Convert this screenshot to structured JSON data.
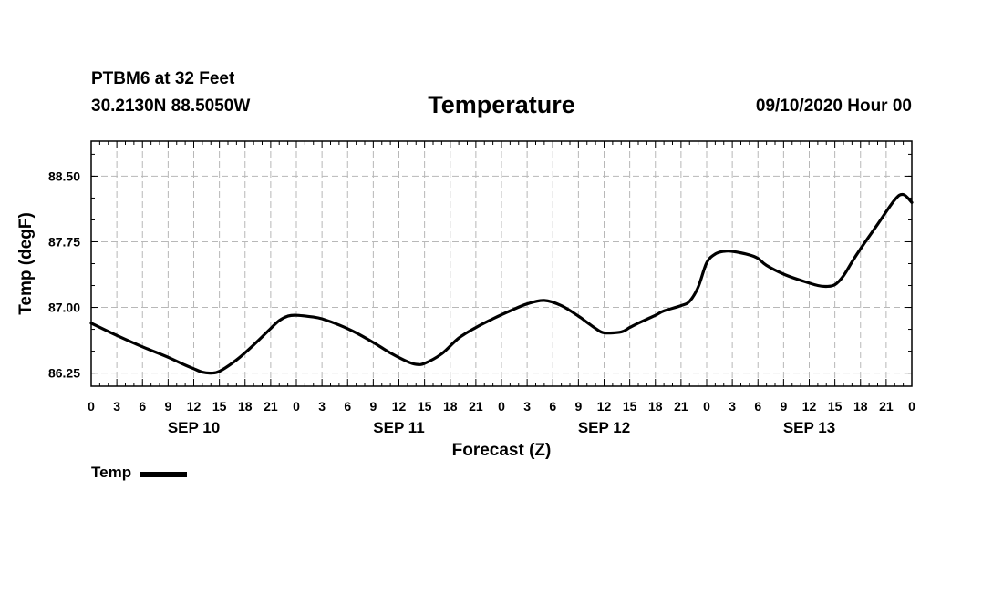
{
  "header": {
    "station": "PTBM6 at 32 Feet",
    "coords": "30.2130N 88.5050W",
    "datetime": "09/10/2020 Hour 00"
  },
  "legend": {
    "label": "Temp"
  },
  "chart_data": {
    "type": "line",
    "title": "Temperature",
    "xlabel": "Forecast (Z)",
    "ylabel": "Temp (degF)",
    "xunit": "hours since 09/10 00Z",
    "xlim": [
      0,
      96
    ],
    "ylim": [
      86.1,
      88.9
    ],
    "yticks": [
      86.25,
      87.0,
      87.75,
      88.5
    ],
    "ytick_labels": [
      "86.25",
      "87.00",
      "87.75",
      "88.50"
    ],
    "xticks": [
      0,
      3,
      6,
      9,
      12,
      15,
      18,
      21,
      24,
      27,
      30,
      33,
      36,
      39,
      42,
      45,
      48,
      51,
      54,
      57,
      60,
      63,
      66,
      69,
      72,
      75,
      78,
      81,
      84,
      87,
      90,
      93,
      96
    ],
    "xtick_labels": [
      "0",
      "3",
      "6",
      "9",
      "12",
      "15",
      "18",
      "21",
      "0",
      "3",
      "6",
      "9",
      "12",
      "15",
      "18",
      "21",
      "0",
      "3",
      "6",
      "9",
      "12",
      "15",
      "18",
      "21",
      "0",
      "3",
      "6",
      "9",
      "12",
      "15",
      "18",
      "21",
      "0"
    ],
    "date_labels": [
      {
        "label": "SEP 10",
        "x": 12
      },
      {
        "label": "SEP 11",
        "x": 36
      },
      {
        "label": "SEP 12",
        "x": 60
      },
      {
        "label": "SEP 13",
        "x": 84
      }
    ],
    "grid": true,
    "series": [
      {
        "name": "Temp",
        "color": "#000000",
        "x": [
          0,
          3,
          6,
          9,
          11,
          12,
          13,
          14,
          15,
          17,
          19,
          21,
          22,
          23,
          24,
          26,
          27,
          29,
          31,
          33,
          35,
          37,
          38,
          39,
          41,
          43,
          45,
          47,
          49,
          51,
          53,
          55,
          57,
          58,
          59,
          60,
          62,
          63,
          64,
          66,
          67,
          69,
          70,
          71,
          72,
          73,
          74,
          75,
          77,
          78,
          79,
          81,
          83,
          85,
          86,
          87,
          88,
          89,
          90,
          92,
          94,
          95,
          96
        ],
        "values": [
          86.82,
          86.68,
          86.55,
          86.43,
          86.34,
          86.3,
          86.26,
          86.25,
          86.27,
          86.4,
          86.57,
          86.76,
          86.85,
          86.9,
          86.91,
          86.89,
          86.87,
          86.8,
          86.71,
          86.6,
          86.48,
          86.38,
          86.35,
          86.36,
          86.47,
          86.65,
          86.77,
          86.87,
          86.96,
          87.04,
          87.08,
          87.02,
          86.9,
          86.83,
          86.76,
          86.71,
          86.72,
          86.77,
          86.82,
          86.91,
          86.96,
          87.02,
          87.07,
          87.23,
          87.51,
          87.61,
          87.64,
          87.64,
          87.6,
          87.56,
          87.48,
          87.38,
          87.31,
          87.25,
          87.24,
          87.26,
          87.36,
          87.52,
          87.67,
          87.95,
          88.23,
          88.29,
          88.2
        ]
      }
    ]
  }
}
